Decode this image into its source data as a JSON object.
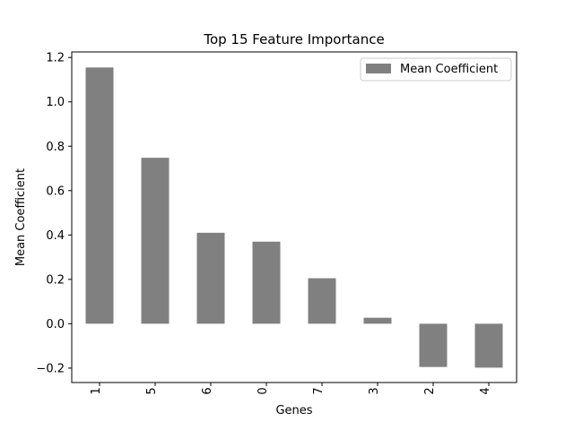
{
  "chart_data": {
    "type": "bar",
    "title": "Top 15 Feature Importance",
    "xlabel": "Genes",
    "ylabel": "Mean Coefficient",
    "categories": [
      "1",
      "5",
      "6",
      "0",
      "7",
      "3",
      "2",
      "4"
    ],
    "series": [
      {
        "name": "Mean Coefficient",
        "values": [
          1.155,
          0.748,
          0.41,
          0.37,
          0.205,
          0.027,
          -0.195,
          -0.198
        ],
        "color": "#808080"
      }
    ],
    "ylim": [
      -0.265,
      1.225
    ],
    "yticks": [
      -0.2,
      0.0,
      0.2,
      0.4,
      0.6,
      0.8,
      1.0,
      1.2
    ],
    "ytick_labels": [
      "−0.2",
      "0.0",
      "0.2",
      "0.4",
      "0.6",
      "0.8",
      "1.0",
      "1.2"
    ],
    "legend": {
      "position": "top-right"
    },
    "grid": false
  }
}
